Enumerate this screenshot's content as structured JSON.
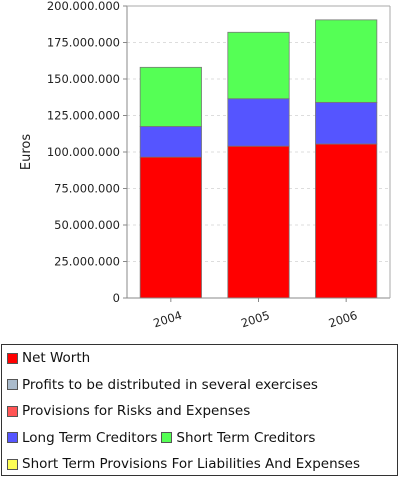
{
  "chart_data": {
    "type": "bar",
    "stacked": true,
    "categories": [
      "2004",
      "2005",
      "2006"
    ],
    "series": [
      {
        "name": "Net Worth",
        "color": "#ff0000",
        "values": [
          96500000,
          104000000,
          105500000
        ]
      },
      {
        "name": "Profits to be distributed in several exercises",
        "color": "#aabbcc",
        "values": [
          0,
          0,
          0
        ]
      },
      {
        "name": "Provisions for Risks and Expenses",
        "color": "#ff5555",
        "values": [
          0,
          0,
          0
        ]
      },
      {
        "name": "Long Term Creditors",
        "color": "#5555ff",
        "values": [
          21000000,
          32500000,
          28500000
        ]
      },
      {
        "name": "Short Term Creditors",
        "color": "#55ff55",
        "values": [
          40500000,
          45500000,
          56500000
        ]
      },
      {
        "name": "Short Term Provisions For Liabilities And Expenses",
        "color": "#ffff55",
        "values": [
          0,
          0,
          0
        ]
      }
    ],
    "ylabel": "Euros",
    "xlabel": "",
    "ylim": [
      0,
      200000000
    ],
    "yticks": [
      0,
      25000000,
      50000000,
      75000000,
      100000000,
      125000000,
      150000000,
      175000000,
      200000000
    ],
    "ytick_labels": [
      "0",
      "25.000.000",
      "50.000.000",
      "75.000.000",
      "100.000.000",
      "125.000.000",
      "150.000.000",
      "175.000.000",
      "200.000.000"
    ],
    "grid": true,
    "legend_position": "bottom"
  },
  "legend": {
    "rows": [
      [
        "Net Worth"
      ],
      [
        "Profits to be distributed in several exercises"
      ],
      [
        "Provisions for Risks and Expenses"
      ],
      [
        "Long Term Creditors",
        "Short Term Creditors"
      ],
      [
        "Short Term Provisions For Liabilities And Expenses"
      ]
    ]
  }
}
